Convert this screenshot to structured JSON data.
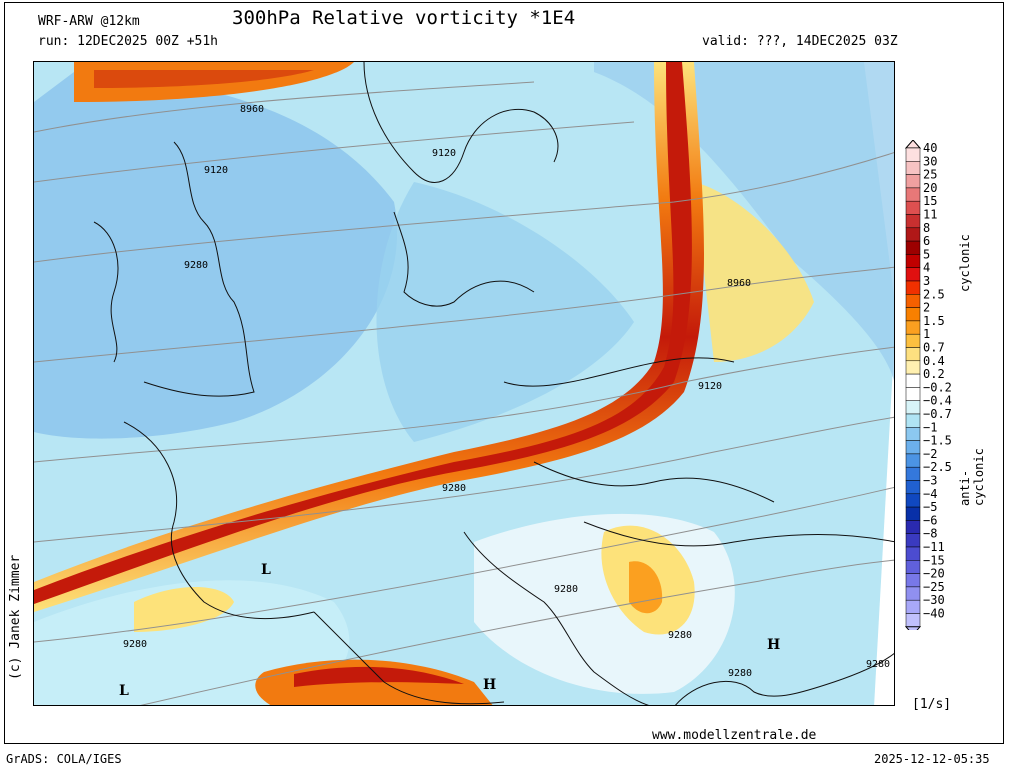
{
  "header": {
    "model": "WRF-ARW @12km",
    "title": "300hPa Relative vorticity *1E4",
    "run": "run: 12DEC2025 00Z +51h",
    "valid": "valid: ???, 14DEC2025 03Z"
  },
  "footer": {
    "author": "(c) Janek Zimmer",
    "website": "www.modellzentrale.de",
    "grads": "GrADS: COLA/IGES",
    "timestamp": "2025-12-12-05:35",
    "unit": "[1/s]"
  },
  "legend": {
    "levels": [
      "40",
      "30",
      "25",
      "20",
      "15",
      "11",
      "8",
      "6",
      "5",
      "4",
      "3",
      "2.5",
      "2",
      "1.5",
      "1",
      "0.7",
      "0.4",
      "0.2",
      "−0.2",
      "−0.4",
      "−0.7",
      "−1",
      "−1.5",
      "−2",
      "−2.5",
      "−3",
      "−4",
      "−5",
      "−6",
      "−8",
      "−11",
      "−15",
      "−20",
      "−25",
      "−30",
      "−40"
    ],
    "colors": [
      "#fde0e0",
      "#f7c3c3",
      "#f0a0a0",
      "#e87878",
      "#dd5050",
      "#c83030",
      "#b01818",
      "#9c0000",
      "#c00000",
      "#e01010",
      "#f03000",
      "#f56000",
      "#f88000",
      "#fba020",
      "#fcc040",
      "#fde080",
      "#fff0b0",
      "#ffffff",
      "#ffffff",
      "#d8f4f8",
      "#b0e4f4",
      "#8cc8f0",
      "#6cb0ec",
      "#4c94e4",
      "#3478dc",
      "#2060d0",
      "#1048c0",
      "#0830a8",
      "#2a2ab0",
      "#3a3ac0",
      "#4c4cd0",
      "#6060dc",
      "#7878e8",
      "#9090f0",
      "#a8a8f8",
      "#c0c0fc"
    ],
    "cyclonic": "cyclonic",
    "anticyclonic": "anti-cyclonic"
  },
  "map_labels": {
    "contours": [
      "8960",
      "9120",
      "9120",
      "9280",
      "8960",
      "9120",
      "9280",
      "9280",
      "9280",
      "9280",
      "9280",
      "9280"
    ],
    "pressure_centers": [
      "L",
      "L",
      "H",
      "H"
    ]
  },
  "colors": {
    "jet_core": "#c41a0a",
    "jet_edge": "#f27a10",
    "anticyclonic_light": "#b8e6f4",
    "anticyclonic_mid": "#8cc4ec",
    "yellow": "#fde27a"
  }
}
